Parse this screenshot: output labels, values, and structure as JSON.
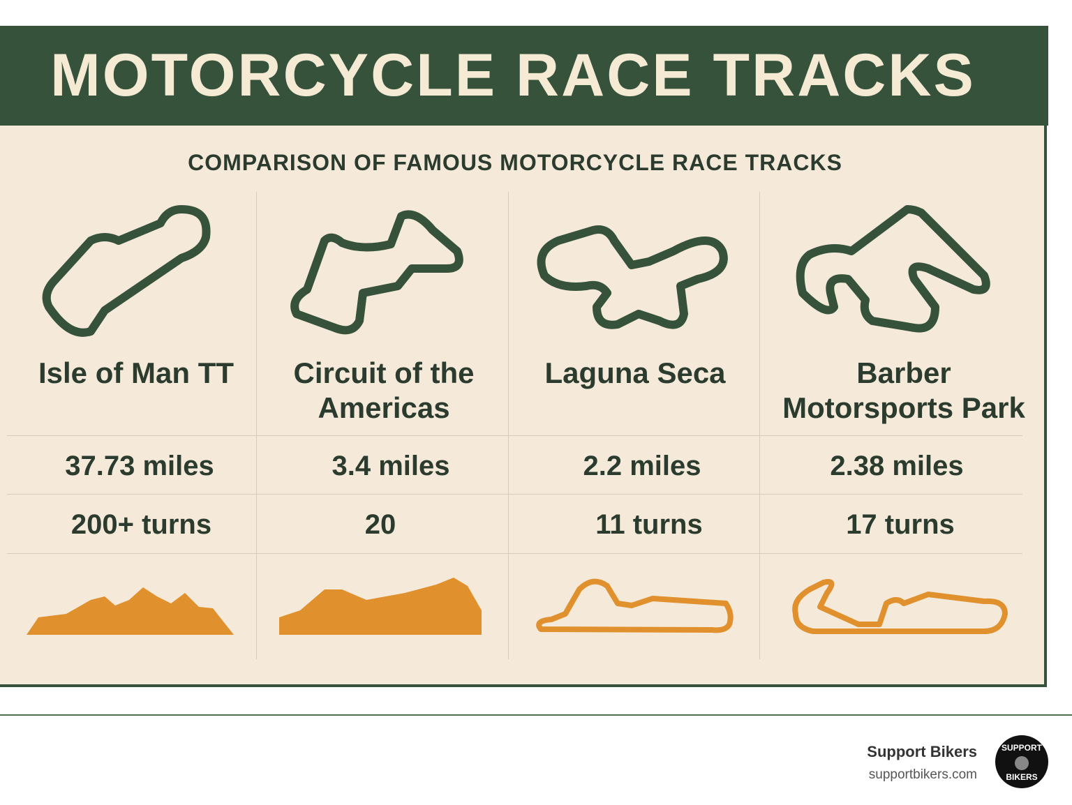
{
  "header": {
    "title": "MOTORCYCLE RACE TRACKS",
    "subtitle": "COMPARISON OF FAMOUS MOTORCYCLE RACE TRACKS"
  },
  "tracks": [
    {
      "name": "Isle of Man TT",
      "length": "37.73 miles",
      "turns": "200+ turns"
    },
    {
      "name": "Circuit of the Americas",
      "length": "3.4 miles",
      "turns": "20"
    },
    {
      "name": "Laguna Seca",
      "length": "2.2 miles",
      "turns": "11 turns"
    },
    {
      "name": "Barber Motorsports Park",
      "length": "2.38 miles",
      "turns": "17 turns"
    }
  ],
  "footer": {
    "brand": "Support Bikers",
    "url": "supportbikers.com",
    "logo_top": "SUPPORT",
    "logo_bottom": "BIKERS"
  }
}
